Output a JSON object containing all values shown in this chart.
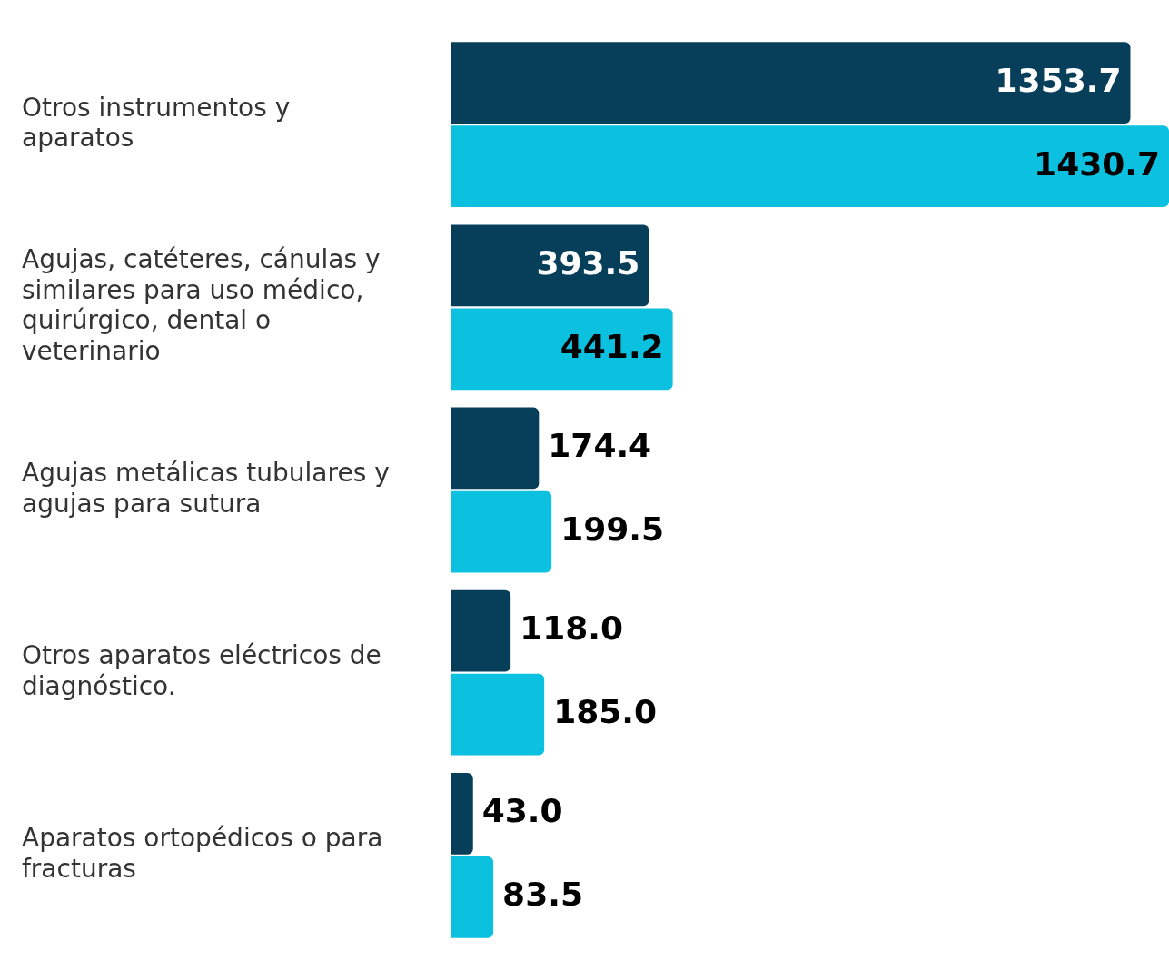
{
  "chart_data": {
    "type": "bar",
    "orientation": "horizontal",
    "categories": [
      "Otros instrumentos y aparatos",
      "Agujas, catéteres, cánulas y similares para uso médico, quirúrgico, dental o veterinario",
      "Agujas metálicas tubulares y agujas para sutura",
      "Otros aparatos eléctricos de diagnóstico.",
      "Aparatos ortopédicos o para fracturas"
    ],
    "series": [
      {
        "color": "#073f5a",
        "values": [
          1353.7,
          393.5,
          174.4,
          118.0,
          43.0
        ],
        "value_labels": [
          "1353.7",
          "393.5",
          "174.4",
          "118.0",
          "43.0"
        ]
      },
      {
        "color": "#0cc0df",
        "values": [
          1430.7,
          441.2,
          199.5,
          185.0,
          83.5
        ],
        "value_labels": [
          "1430.7",
          "441.2",
          "199.5",
          "185.0",
          "83.5"
        ]
      }
    ],
    "xlim": [
      0,
      1430.7
    ],
    "tick_labels": "y",
    "grid": false,
    "legend": false
  }
}
